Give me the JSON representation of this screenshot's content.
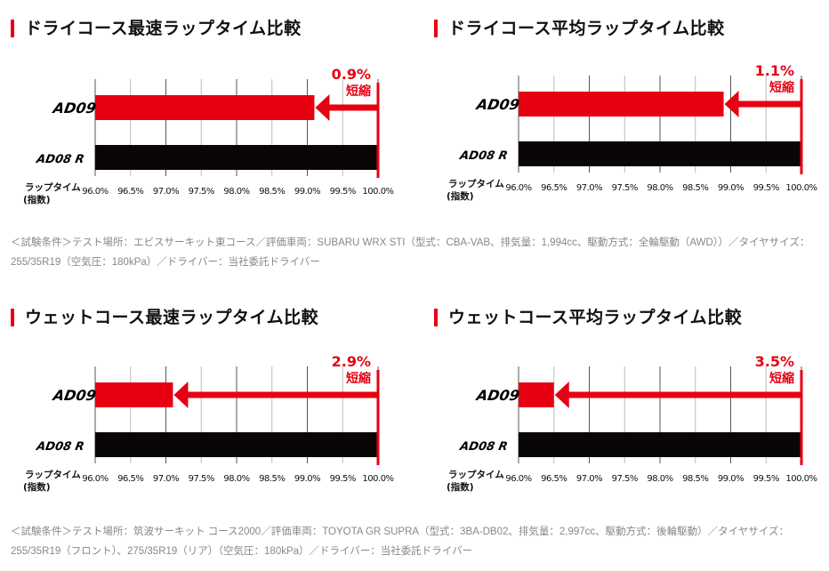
{
  "sections": [
    {
      "title": "ドライコース最速ラップタイム比較"
    },
    {
      "title": "ドライコース平均ラップタイム比較"
    },
    {
      "title": "ウェットコース最速ラップタイム比較"
    },
    {
      "title": "ウェットコース平均ラップタイム比較"
    }
  ],
  "notes": [
    "＜試験条件＞テスト場所：エビスサーキット東コース／評価車両：SUBARU WRX STI（型式：CBA-VAB、排気量：1,994cc、駆動方式：全輪駆動（AWD））／タイヤサイズ：255/35R19（空気圧：180kPa）／ドライバー：当社委託ドライバー",
    "＜試験条件＞テスト場所：筑波サーキット コース2000／評価車両：TOYOTA GR SUPRA（型式：3BA-DB02、排気量：2,997cc、駆動方式：後輪駆動）／タイヤサイズ：255/35R19（フロント）、275/35R19（リア）（空気圧：180kPa）／ドライバー：当社委託ドライバー"
  ],
  "colors": {
    "accent": "#e60012",
    "dark": "#0a0606",
    "grid": "#999999"
  },
  "chart_data": [
    {
      "type": "bar",
      "orientation": "horizontal",
      "title": "ドライコース最速ラップタイム比較",
      "categories": [
        "AD09",
        "AD08 R"
      ],
      "values": [
        99.1,
        100.0
      ],
      "annotation": [
        "0.9%",
        "短縮"
      ],
      "xlabel": [
        "ラップタイム",
        "(指数)"
      ],
      "xlim": [
        96,
        100
      ],
      "xticks": [
        "96.0%",
        "96.5%",
        "97.0%",
        "97.5%",
        "98.0%",
        "98.5%",
        "99.0%",
        "99.5%",
        "100.0%"
      ],
      "grid": true
    },
    {
      "type": "bar",
      "orientation": "horizontal",
      "title": "ドライコース平均ラップタイム比較",
      "categories": [
        "AD09",
        "AD08 R"
      ],
      "values": [
        98.9,
        100.0
      ],
      "annotation": [
        "1.1%",
        "短縮"
      ],
      "xlabel": [
        "ラップタイム",
        "(指数)"
      ],
      "xlim": [
        96,
        100
      ],
      "xticks": [
        "96.0%",
        "96.5%",
        "97.0%",
        "97.5%",
        "98.0%",
        "98.5%",
        "99.0%",
        "99.5%",
        "100.0%"
      ],
      "grid": true
    },
    {
      "type": "bar",
      "orientation": "horizontal",
      "title": "ウェットコース最速ラップタイム比較",
      "categories": [
        "AD09",
        "AD08 R"
      ],
      "values": [
        97.1,
        100.0
      ],
      "annotation": [
        "2.9%",
        "短縮"
      ],
      "xlabel": [
        "ラップタイム",
        "(指数)"
      ],
      "xlim": [
        96,
        100
      ],
      "xticks": [
        "96.0%",
        "96.5%",
        "97.0%",
        "97.5%",
        "98.0%",
        "98.5%",
        "99.0%",
        "99.5%",
        "100.0%"
      ],
      "grid": true
    },
    {
      "type": "bar",
      "orientation": "horizontal",
      "title": "ウェットコース平均ラップタイム比較",
      "categories": [
        "AD09",
        "AD08 R"
      ],
      "values": [
        96.5,
        100.0
      ],
      "annotation": [
        "3.5%",
        "短縮"
      ],
      "xlabel": [
        "ラップタイム",
        "(指数)"
      ],
      "xlim": [
        96,
        100
      ],
      "xticks": [
        "96.0%",
        "96.5%",
        "97.0%",
        "97.5%",
        "98.0%",
        "98.5%",
        "99.0%",
        "99.5%",
        "100.0%"
      ],
      "grid": true
    }
  ]
}
